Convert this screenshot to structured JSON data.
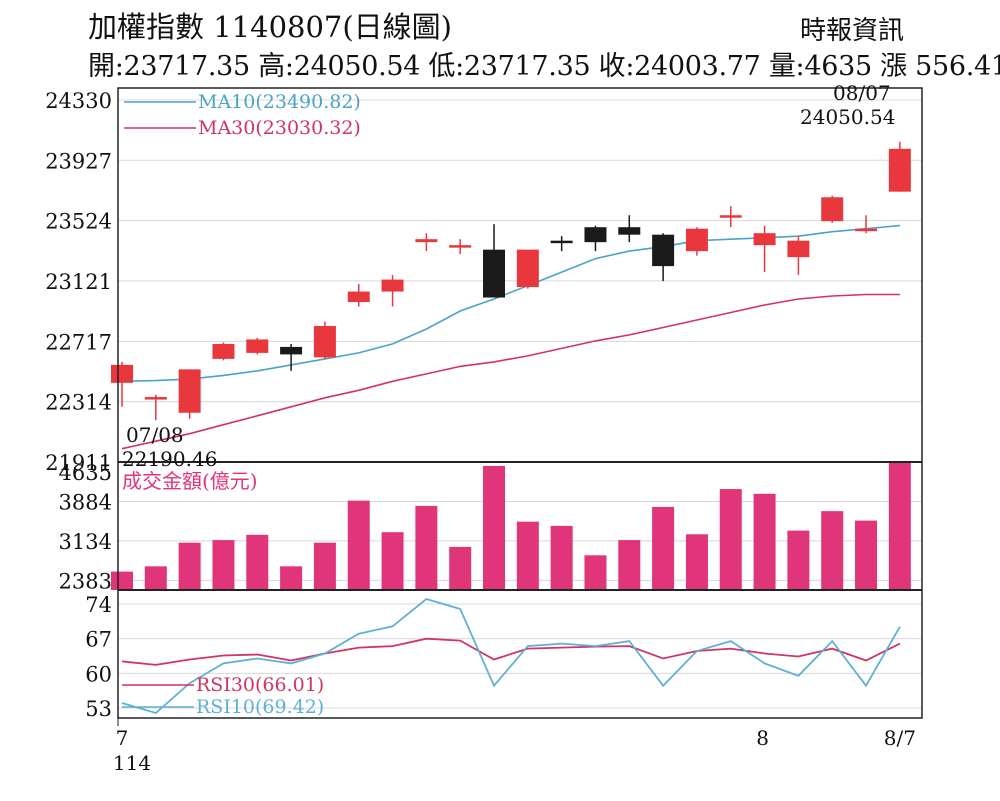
{
  "header": {
    "title": "加權指數 1140807(日線圖)",
    "source": "時報資訊",
    "ohlc": "開:23717.35 高:24050.54 低:23717.35 收:24003.77 量:4635 漲 556.41"
  },
  "colors": {
    "up": "#e8383d",
    "down": "#1a1a1a",
    "ma10": "#4aa3c8",
    "ma30": "#d2335f",
    "volume": "#e0357a",
    "rsi30": "#d2335f",
    "rsi10": "#5fb0d4",
    "grid": "#d8d8d8"
  },
  "chart_data": [
    {
      "type": "candlestick",
      "y_ticks": [
        24330,
        23927,
        23524,
        23121,
        22717,
        22314,
        21911
      ],
      "ylim": [
        21911,
        24330
      ],
      "grid": true,
      "legend": [
        {
          "key": "ma10",
          "label": "MA10(23490.82)"
        },
        {
          "key": "ma30",
          "label": "MA30(23030.32)"
        }
      ],
      "annotations": [
        {
          "date": "07/08",
          "value": "22190.46",
          "text_date": "07/08",
          "text_value": "22190.46"
        },
        {
          "date": "08/07",
          "value": "24050.54",
          "text_date": "08/07",
          "text_value": "24050.54"
        }
      ],
      "candles": [
        {
          "o": 22440,
          "h": 22580,
          "l": 22280,
          "c": 22560
        },
        {
          "o": 22345,
          "h": 22360,
          "l": 22190,
          "c": 22345
        },
        {
          "o": 22240,
          "h": 22530,
          "l": 22200,
          "c": 22530
        },
        {
          "o": 22600,
          "h": 22710,
          "l": 22590,
          "c": 22700
        },
        {
          "o": 22640,
          "h": 22740,
          "l": 22630,
          "c": 22730
        },
        {
          "o": 22680,
          "h": 22700,
          "l": 22520,
          "c": 22630
        },
        {
          "o": 22610,
          "h": 22850,
          "l": 22600,
          "c": 22820
        },
        {
          "o": 22980,
          "h": 23100,
          "l": 22950,
          "c": 23050
        },
        {
          "o": 23050,
          "h": 23160,
          "l": 22950,
          "c": 23130
        },
        {
          "o": 23380,
          "h": 23440,
          "l": 23320,
          "c": 23400
        },
        {
          "o": 23350,
          "h": 23400,
          "l": 23300,
          "c": 23360
        },
        {
          "o": 23330,
          "h": 23500,
          "l": 23020,
          "c": 23010
        },
        {
          "o": 23080,
          "h": 23330,
          "l": 23070,
          "c": 23330
        },
        {
          "o": 23390,
          "h": 23420,
          "l": 23320,
          "c": 23385
        },
        {
          "o": 23480,
          "h": 23490,
          "l": 23320,
          "c": 23380
        },
        {
          "o": 23480,
          "h": 23560,
          "l": 23380,
          "c": 23430
        },
        {
          "o": 23430,
          "h": 23440,
          "l": 23120,
          "c": 23220
        },
        {
          "o": 23320,
          "h": 23480,
          "l": 23290,
          "c": 23470
        },
        {
          "o": 23550,
          "h": 23620,
          "l": 23480,
          "c": 23560
        },
        {
          "o": 23360,
          "h": 23490,
          "l": 23180,
          "c": 23440
        },
        {
          "o": 23280,
          "h": 23420,
          "l": 23160,
          "c": 23390
        },
        {
          "o": 23520,
          "h": 23690,
          "l": 23510,
          "c": 23680
        },
        {
          "o": 23470,
          "h": 23560,
          "l": 23440,
          "c": 23470
        },
        {
          "o": 23717.35,
          "h": 24050.54,
          "l": 23717.35,
          "c": 24003.77
        }
      ],
      "ma10": [
        22450,
        22455,
        22465,
        22490,
        22520,
        22560,
        22600,
        22640,
        22700,
        22800,
        22920,
        23000,
        23090,
        23180,
        23270,
        23320,
        23350,
        23390,
        23400,
        23410,
        23420,
        23450,
        23470,
        23490.82
      ],
      "ma30": [
        22000,
        22050,
        22100,
        22160,
        22220,
        22280,
        22340,
        22390,
        22450,
        22500,
        22550,
        22580,
        22620,
        22670,
        22720,
        22760,
        22810,
        22860,
        22910,
        22960,
        23000,
        23020,
        23030,
        23030.32
      ]
    },
    {
      "type": "bar",
      "name": "成交金額(億元)",
      "y_ticks": [
        4635,
        3884,
        3134,
        2383
      ],
      "ylim": [
        2200,
        4635
      ],
      "values": [
        2550,
        2650,
        3100,
        3150,
        3250,
        2650,
        3100,
        3900,
        3300,
        3800,
        3020,
        4560,
        3500,
        3420,
        2860,
        3150,
        3780,
        3260,
        4120,
        4030,
        3330,
        3700,
        3520,
        4635
      ]
    },
    {
      "type": "line",
      "y_ticks": [
        74,
        67,
        60,
        53
      ],
      "ylim": [
        51,
        75
      ],
      "legend": [
        {
          "key": "rsi30",
          "label": "RSI30(66.01)"
        },
        {
          "key": "rsi10",
          "label": "RSI10(69.42)"
        }
      ],
      "rsi30": [
        62.4,
        61.7,
        62.8,
        63.6,
        63.8,
        62.6,
        64.0,
        65.2,
        65.5,
        67.0,
        66.6,
        62.8,
        65.0,
        65.2,
        65.4,
        65.5,
        63.0,
        64.5,
        65.0,
        64.0,
        63.4,
        65.0,
        62.6,
        66.01
      ],
      "rsi10": [
        54.0,
        52.0,
        58.0,
        62.0,
        63.0,
        62.0,
        64.0,
        68.0,
        69.5,
        75.0,
        73.0,
        57.5,
        65.5,
        66.0,
        65.5,
        66.5,
        57.5,
        64.5,
        66.5,
        62.0,
        59.5,
        66.5,
        57.5,
        69.42
      ]
    }
  ],
  "x_axis": {
    "ticks": [
      {
        "index": 0,
        "label": "7",
        "sub": "114"
      },
      {
        "index": 19,
        "label": "8",
        "sub": ""
      },
      {
        "index": 23,
        "label": "8/7",
        "sub": ""
      }
    ]
  }
}
